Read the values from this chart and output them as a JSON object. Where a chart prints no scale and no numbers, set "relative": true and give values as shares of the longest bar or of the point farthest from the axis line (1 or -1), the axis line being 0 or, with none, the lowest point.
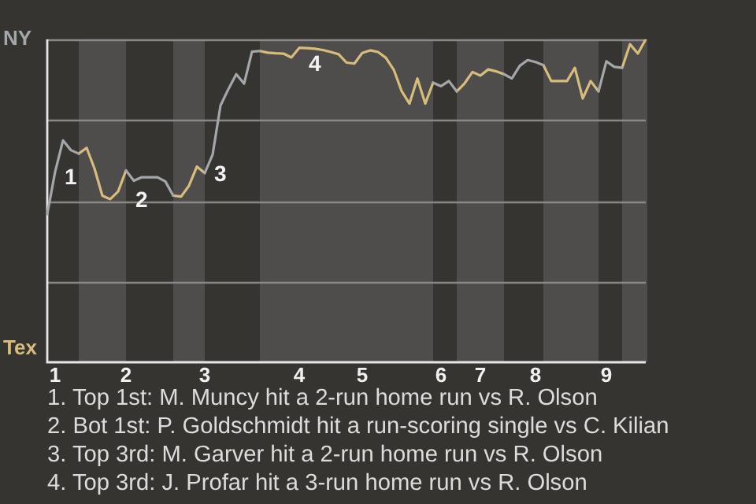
{
  "chart_data": {
    "type": "line",
    "relative": true,
    "categories": [
      null,
      "1",
      null,
      null,
      null,
      null,
      null,
      null,
      null,
      null,
      "2",
      null,
      null,
      null,
      null,
      null,
      null,
      null,
      null,
      null,
      "3",
      null,
      null,
      null,
      null,
      null,
      null,
      null,
      null,
      null,
      null,
      null,
      "4",
      null,
      null,
      null,
      null,
      null,
      null,
      null,
      "5",
      null,
      null,
      null,
      null,
      null,
      null,
      null,
      null,
      null,
      "6",
      null,
      null,
      null,
      null,
      "7",
      null,
      null,
      null,
      null,
      null,
      null,
      "8",
      null,
      null,
      null,
      null,
      null,
      null,
      null,
      null,
      "9",
      null,
      null,
      null,
      null,
      null
    ],
    "grid": false,
    "legend": false,
    "marker": "none",
    "line_style": "solid",
    "series": [
      {
        "name": "NY",
        "color": "#a3a7ab",
        "values": [
          0.459,
          0.59,
          0.687,
          0.657,
          0.646,
          null,
          null,
          null,
          null,
          null,
          0.594,
          0.562,
          0.573,
          0.573,
          0.573,
          0.56,
          0.516,
          null,
          null,
          null,
          0.586,
          0.643,
          0.795,
          0.846,
          0.892,
          0.863,
          0.962,
          0.964,
          null,
          null,
          null,
          null,
          null,
          null,
          null,
          null,
          null,
          null,
          null,
          null,
          null,
          null,
          null,
          null,
          null,
          null,
          null,
          null,
          null,
          0.866,
          0.855,
          0.871,
          0.839,
          null,
          null,
          null,
          null,
          null,
          0.892,
          0.879,
          0.918,
          0.936,
          0.93,
          0.92,
          null,
          null,
          null,
          null,
          null,
          null,
          0.839,
          0.932,
          0.915,
          0.912,
          null,
          null,
          null
        ]
      },
      {
        "name": "Tex",
        "color": "#d8bc7c",
        "values": [
          null,
          null,
          null,
          null,
          0.646,
          0.664,
          0.6,
          0.516,
          0.505,
          0.529,
          0.594,
          null,
          null,
          null,
          null,
          null,
          0.516,
          0.513,
          0.547,
          0.606,
          0.586,
          null,
          null,
          null,
          null,
          null,
          null,
          0.964,
          0.959,
          0.957,
          0.956,
          0.944,
          0.974,
          0.973,
          0.971,
          0.967,
          0.961,
          0.954,
          0.928,
          0.925,
          0.958,
          0.966,
          0.961,
          0.943,
          0.906,
          0.84,
          0.801,
          0.879,
          0.801,
          0.866,
          null,
          null,
          0.839,
          0.864,
          0.899,
          0.888,
          0.907,
          0.901,
          0.892,
          null,
          null,
          null,
          null,
          0.92,
          0.871,
          0.871,
          0.871,
          0.912,
          0.817,
          0.871,
          0.839,
          null,
          null,
          0.912,
          0.985,
          0.956,
          1
        ]
      }
    ],
    "ref_lines": [
      {
        "axis": "y",
        "value": 1,
        "label": null,
        "color": "#8a8886"
      },
      {
        "axis": "y",
        "value": 0.75,
        "label": null,
        "color": "#8a8886"
      },
      {
        "axis": "y",
        "value": 0.5,
        "label": null,
        "color": "#8a8886"
      },
      {
        "axis": "y",
        "value": 0.25,
        "label": null,
        "color": "#8a8886"
      }
    ],
    "annotations": [
      {
        "text": "1",
        "x": "1",
        "y": 0.59
      },
      {
        "text": "2",
        "x": "2",
        "y": 0.52
      },
      {
        "text": "3",
        "x": "3",
        "y": 0.6
      },
      {
        "text": "4",
        "x": "4",
        "y": 0.94
      },
      "1. Top 1st: M. Muncy hit a 2-run home run vs R. Olson",
      "2. Bot 1st: P. Goldschmidt hit a run-scoring single vs C. Kilian",
      "3. Top 3rd: M. Garver hit a 2-run home run vs R. Olson",
      "4. Top 3rd: J. Profar hit a 3-run home run vs R. Olson"
    ]
  }
}
